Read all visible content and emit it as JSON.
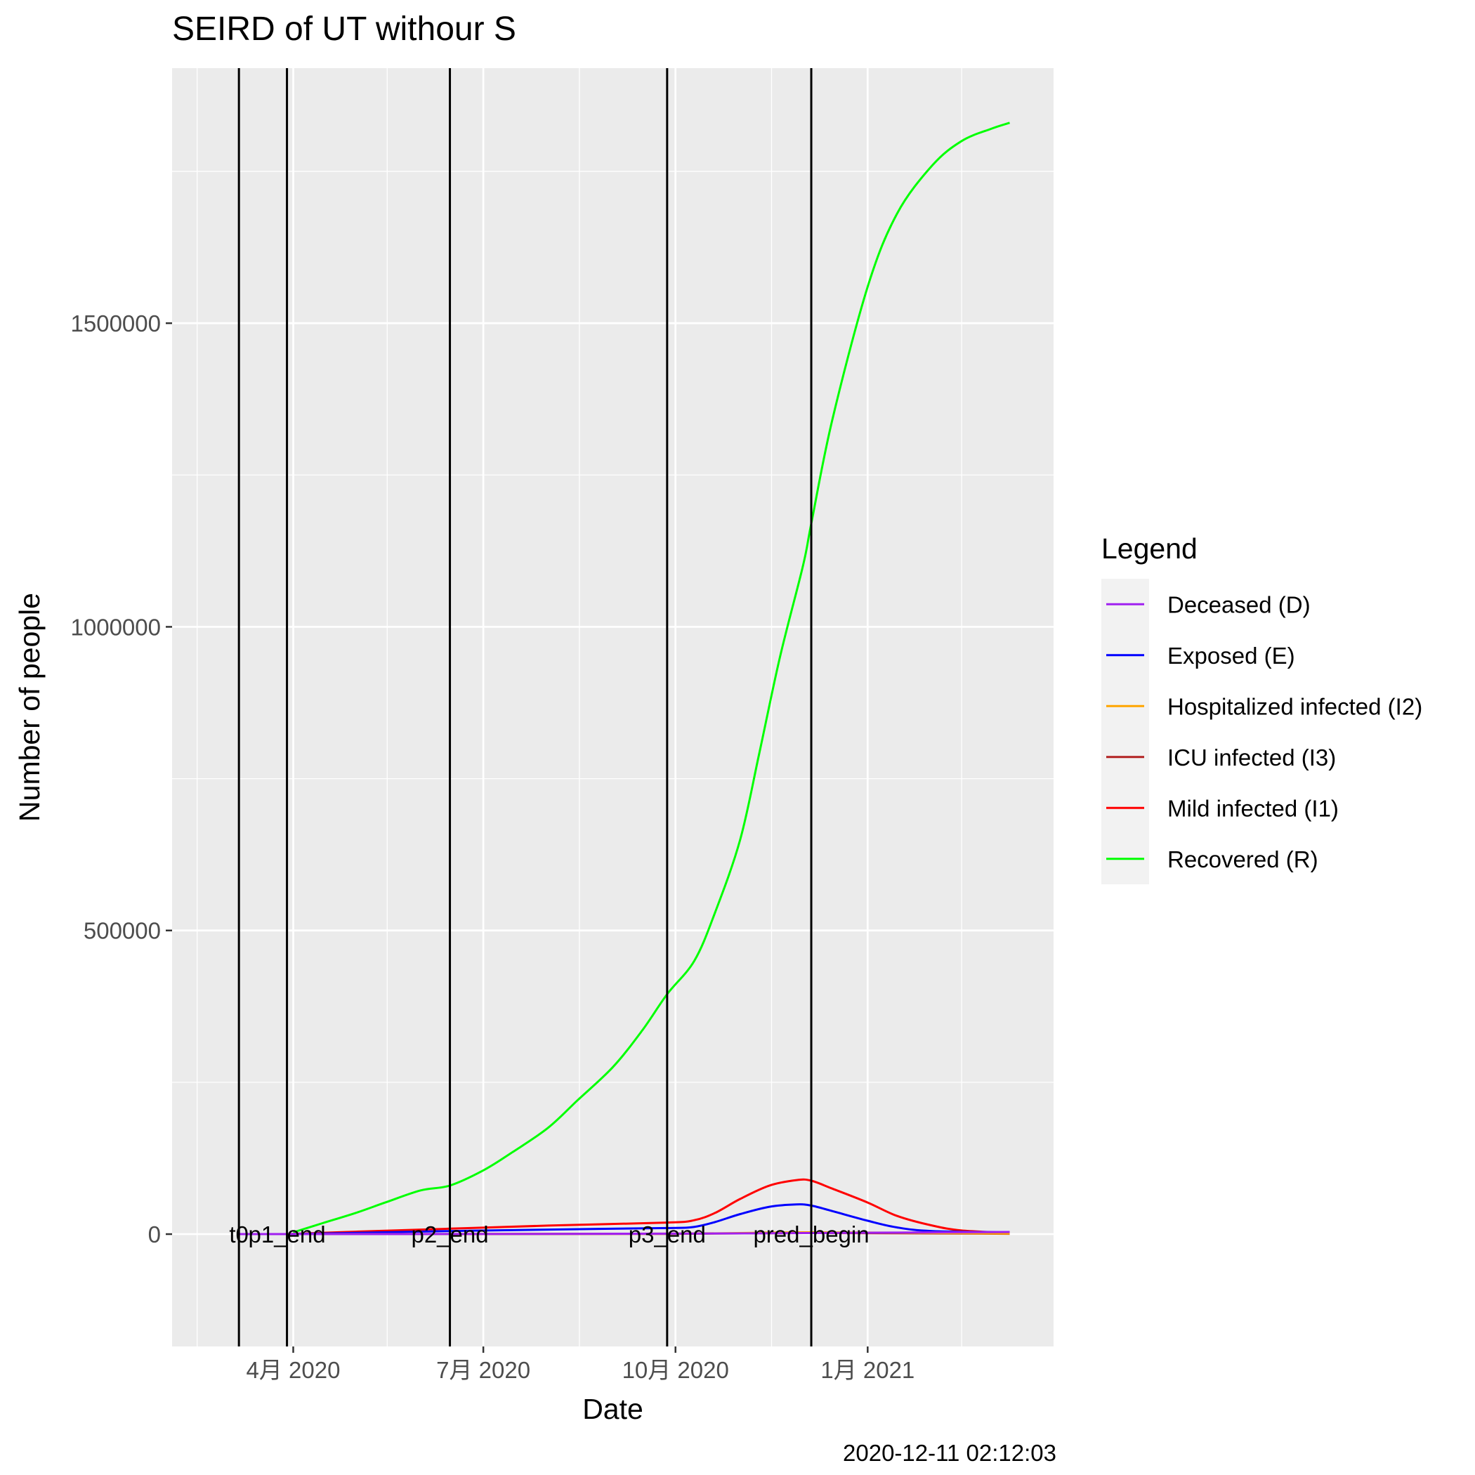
{
  "chart_data": {
    "type": "line",
    "title": "SEIRD of UT withour S",
    "xlabel": "Date",
    "ylabel": "Number of people",
    "caption": "2020-12-11 02:12:03",
    "grid": true,
    "background": "#EBEBEB",
    "xlim": [
      "2020-02-03",
      "2021-03-31"
    ],
    "ylim": [
      -185000,
      1920000
    ],
    "x_ticks": [
      {
        "date": "2020-04-01",
        "label": "4月 2020"
      },
      {
        "date": "2020-07-01",
        "label": "7月 2020"
      },
      {
        "date": "2020-10-01",
        "label": "10月 2020"
      },
      {
        "date": "2021-01-01",
        "label": "1月 2021"
      }
    ],
    "x_minor_dates": [
      "2020-02-15",
      "2020-05-16",
      "2020-08-16",
      "2020-11-16",
      "2021-02-15"
    ],
    "y_ticks": [
      {
        "value": 0,
        "label": "0"
      },
      {
        "value": 500000,
        "label": "500000"
      },
      {
        "value": 1000000,
        "label": "1000000"
      },
      {
        "value": 1500000,
        "label": "1500000"
      }
    ],
    "y_minor": [
      -250000,
      250000,
      750000,
      1250000,
      1750000
    ],
    "vlines": [
      {
        "date": "2020-03-06",
        "label": "t0"
      },
      {
        "date": "2020-03-29",
        "label": "p1_end"
      },
      {
        "date": "2020-06-15",
        "label": "p2_end"
      },
      {
        "date": "2020-09-27",
        "label": "p3_end"
      },
      {
        "date": "2020-12-05",
        "label": "pred_begin"
      }
    ],
    "legend": {
      "title": "Legend",
      "position": "right",
      "entries": [
        {
          "name": "Deceased (D)",
          "color": "#A020F0"
        },
        {
          "name": "Exposed (E)",
          "color": "#0000FF"
        },
        {
          "name": "Hospitalized infected (I2)",
          "color": "#FFA500"
        },
        {
          "name": "ICU infected (I3)",
          "color": "#B22222"
        },
        {
          "name": "Mild infected (I1)",
          "color": "#FF0000"
        },
        {
          "name": "Recovered (R)",
          "color": "#00FF00"
        }
      ]
    },
    "series": [
      {
        "name": "Recovered (R)",
        "color": "#00FF00",
        "points": [
          [
            "2020-04-01",
            3000
          ],
          [
            "2020-04-15",
            18000
          ],
          [
            "2020-05-01",
            35000
          ],
          [
            "2020-05-15",
            52000
          ],
          [
            "2020-06-01",
            72000
          ],
          [
            "2020-06-15",
            80000
          ],
          [
            "2020-07-01",
            105000
          ],
          [
            "2020-07-15",
            135000
          ],
          [
            "2020-08-01",
            175000
          ],
          [
            "2020-08-15",
            220000
          ],
          [
            "2020-09-01",
            275000
          ],
          [
            "2020-09-15",
            335000
          ],
          [
            "2020-09-27",
            395000
          ],
          [
            "2020-10-10",
            450000
          ],
          [
            "2020-10-20",
            530000
          ],
          [
            "2020-11-01",
            650000
          ],
          [
            "2020-11-10",
            790000
          ],
          [
            "2020-11-20",
            950000
          ],
          [
            "2020-12-01",
            1100000
          ],
          [
            "2020-12-05",
            1170000
          ],
          [
            "2020-12-15",
            1340000
          ],
          [
            "2021-01-01",
            1560000
          ],
          [
            "2021-01-15",
            1680000
          ],
          [
            "2021-02-01",
            1760000
          ],
          [
            "2021-02-15",
            1800000
          ],
          [
            "2021-03-01",
            1820000
          ],
          [
            "2021-03-10",
            1830000
          ]
        ]
      },
      {
        "name": "Mild infected (I1)",
        "color": "#FF0000",
        "points": [
          [
            "2020-03-29",
            0
          ],
          [
            "2020-05-01",
            4000
          ],
          [
            "2020-06-15",
            9000
          ],
          [
            "2020-08-01",
            14000
          ],
          [
            "2020-09-27",
            19000
          ],
          [
            "2020-10-10",
            23000
          ],
          [
            "2020-10-20",
            35000
          ],
          [
            "2020-11-01",
            58000
          ],
          [
            "2020-11-15",
            80000
          ],
          [
            "2020-11-28",
            89000
          ],
          [
            "2020-12-05",
            88000
          ],
          [
            "2020-12-15",
            75000
          ],
          [
            "2021-01-01",
            52000
          ],
          [
            "2021-01-15",
            30000
          ],
          [
            "2021-02-01",
            14000
          ],
          [
            "2021-02-15",
            6000
          ],
          [
            "2021-03-10",
            2000
          ]
        ]
      },
      {
        "name": "Exposed (E)",
        "color": "#0000FF",
        "points": [
          [
            "2020-03-29",
            0
          ],
          [
            "2020-05-01",
            2000
          ],
          [
            "2020-06-15",
            5000
          ],
          [
            "2020-08-01",
            7500
          ],
          [
            "2020-09-27",
            10000
          ],
          [
            "2020-10-10",
            12000
          ],
          [
            "2020-10-20",
            20000
          ],
          [
            "2020-11-01",
            33000
          ],
          [
            "2020-11-15",
            45000
          ],
          [
            "2020-11-28",
            49000
          ],
          [
            "2020-12-05",
            47000
          ],
          [
            "2020-12-15",
            38000
          ],
          [
            "2021-01-01",
            22000
          ],
          [
            "2021-01-15",
            11000
          ],
          [
            "2021-02-01",
            5000
          ],
          [
            "2021-03-10",
            3000
          ]
        ]
      },
      {
        "name": "ICU infected (I3)",
        "color": "#B22222",
        "points": [
          [
            "2020-03-29",
            0
          ],
          [
            "2020-09-27",
            400
          ],
          [
            "2020-12-05",
            1800
          ],
          [
            "2021-03-10",
            500
          ]
        ]
      },
      {
        "name": "Hospitalized infected (I2)",
        "color": "#FFA500",
        "points": [
          [
            "2020-03-29",
            0
          ],
          [
            "2020-09-27",
            800
          ],
          [
            "2020-12-05",
            3000
          ],
          [
            "2021-03-10",
            900
          ]
        ]
      },
      {
        "name": "Deceased (D)",
        "color": "#A020F0",
        "points": [
          [
            "2020-03-06",
            0
          ],
          [
            "2020-06-15",
            200
          ],
          [
            "2020-09-27",
            800
          ],
          [
            "2020-12-05",
            1800
          ],
          [
            "2021-03-10",
            3500
          ]
        ]
      }
    ]
  }
}
